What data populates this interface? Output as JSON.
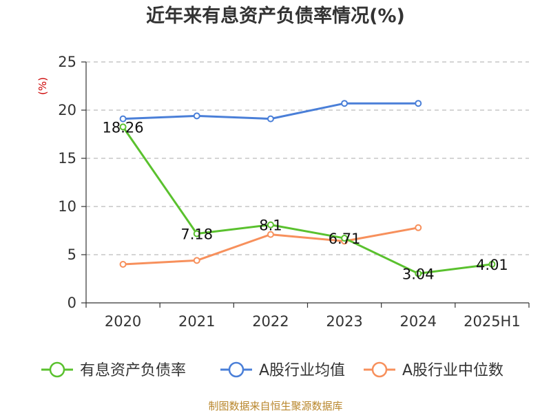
{
  "chart_data": {
    "type": "line",
    "title": "近年来有息资产负债率情况(%)",
    "unit": "(%)",
    "categories": [
      "2020",
      "2021",
      "2022",
      "2023",
      "2024",
      "2025H1"
    ],
    "ylim": [
      0,
      25
    ],
    "yticks": [
      0,
      5,
      10,
      15,
      20,
      25
    ],
    "grid": true,
    "legend_position": "bottom",
    "series": [
      {
        "name": "有息资产负债率",
        "color": "#5ac12e",
        "values": [
          18.26,
          7.18,
          8.1,
          6.71,
          3.04,
          4.01
        ],
        "labels": [
          "18.26",
          "7.18",
          "8.1",
          "6.71",
          "3.04",
          "4.01"
        ]
      },
      {
        "name": "A股行业均值",
        "color": "#4a7fd8",
        "values": [
          19.1,
          19.4,
          19.1,
          20.7,
          20.7,
          null
        ]
      },
      {
        "name": "A股行业中位数",
        "color": "#f7905c",
        "values": [
          4.0,
          4.4,
          7.1,
          6.4,
          7.8,
          null
        ]
      }
    ],
    "source": "制图数据来自恒生聚源数据库"
  }
}
